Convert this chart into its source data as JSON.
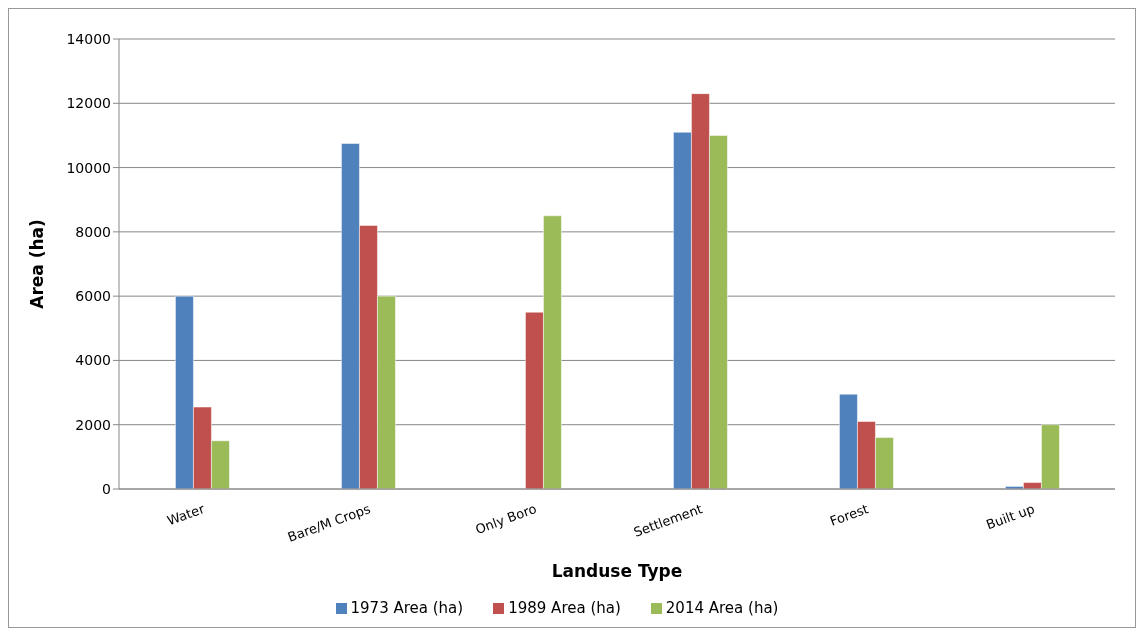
{
  "chart_data": {
    "type": "bar",
    "xlabel": "Landuse Type",
    "ylabel": "Area (ha)",
    "categories": [
      "Water",
      "Bare/M Crops",
      "Only Boro",
      "Settlement",
      "Forest",
      "Built up"
    ],
    "series": [
      {
        "name": "1973 Area (ha)",
        "color": "#4f81bd",
        "values": [
          6000,
          10750,
          0,
          11100,
          2950,
          80
        ]
      },
      {
        "name": "1989 Area (ha)",
        "color": "#c0504d",
        "values": [
          2550,
          8200,
          5500,
          12300,
          2100,
          200
        ]
      },
      {
        "name": "2014 Area (ha)",
        "color": "#9bbb59",
        "values": [
          1500,
          6000,
          8500,
          11000,
          1600,
          2000
        ]
      }
    ],
    "ylim": [
      0,
      14000
    ],
    "yticks": [
      0,
      2000,
      4000,
      6000,
      8000,
      10000,
      12000,
      14000
    ],
    "grid": "y",
    "legend": "bottom"
  }
}
